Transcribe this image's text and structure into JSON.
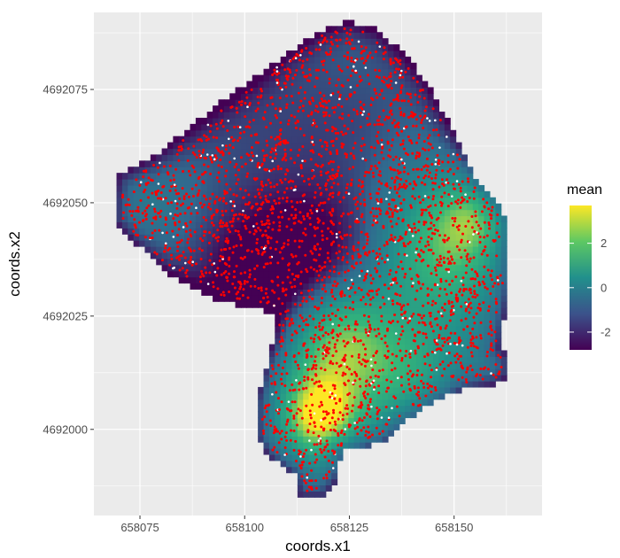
{
  "chart_data": {
    "type": "heatmap",
    "xlabel": "coords.x1",
    "ylabel": "coords.x2",
    "xlim": [
      658064,
      658171
    ],
    "ylim": [
      4691981,
      4692092
    ],
    "x_ticks": [
      658075,
      658100,
      658125,
      658150
    ],
    "x_tick_labels": [
      "658075",
      "658100",
      "658125",
      "658150"
    ],
    "y_ticks": [
      4692000,
      4692025,
      4692050,
      4692075
    ],
    "y_tick_labels": [
      "4692000",
      "4692025",
      "4692050",
      "4692075"
    ],
    "grid": true,
    "background": "#ebebeb",
    "grid_color": "#ffffff",
    "fill": {
      "name": "mean",
      "palette": "viridis",
      "range": [
        -2.8,
        3.7
      ],
      "breaks": [
        2,
        0,
        -2
      ],
      "break_labels": [
        "2",
        "0",
        "-2"
      ],
      "colors": [
        "#440154",
        "#31688e",
        "#21908c",
        "#35b779",
        "#fde725"
      ]
    },
    "region_outline": [
      [
        658069,
        4692051
      ],
      [
        658070,
        4692056
      ],
      [
        658078,
        4692060
      ],
      [
        658086,
        4692066
      ],
      [
        658094,
        4692072
      ],
      [
        658103,
        4692078
      ],
      [
        658110,
        4692083
      ],
      [
        658118,
        4692088
      ],
      [
        658125,
        4692090
      ],
      [
        658132,
        4692088
      ],
      [
        658138,
        4692083
      ],
      [
        658144,
        4692076
      ],
      [
        658149,
        4692067
      ],
      [
        658153,
        4692060
      ],
      [
        658156,
        4692054
      ],
      [
        658160,
        4692050
      ],
      [
        658163,
        4692046
      ],
      [
        658163,
        4692034
      ],
      [
        658162,
        4692025
      ],
      [
        658161,
        4692018
      ],
      [
        658163,
        4692016
      ],
      [
        658163,
        4692012
      ],
      [
        658160,
        4692010
      ],
      [
        658152,
        4692009
      ],
      [
        658145,
        4692006
      ],
      [
        658139,
        4692002
      ],
      [
        658133,
        4691997
      ],
      [
        658127,
        4691996
      ],
      [
        658123,
        4691995
      ],
      [
        658122,
        4691989
      ],
      [
        658119,
        4691985
      ],
      [
        658113,
        4691985
      ],
      [
        658112,
        4691990
      ],
      [
        658106,
        4691994
      ],
      [
        658103,
        4691998
      ],
      [
        658103,
        4692006
      ],
      [
        658105,
        4692013
      ],
      [
        658107,
        4692020
      ],
      [
        658107,
        4692025
      ],
      [
        658103,
        4692027
      ],
      [
        658095,
        4692028
      ],
      [
        658088,
        4692031
      ],
      [
        658081,
        4692035
      ],
      [
        658074,
        4692041
      ],
      [
        658069,
        4692046
      ]
    ],
    "points": {
      "count_estimate": 3000,
      "red_color": "#ff0000",
      "white_color": "#ffffff",
      "red_share": 0.94
    }
  }
}
